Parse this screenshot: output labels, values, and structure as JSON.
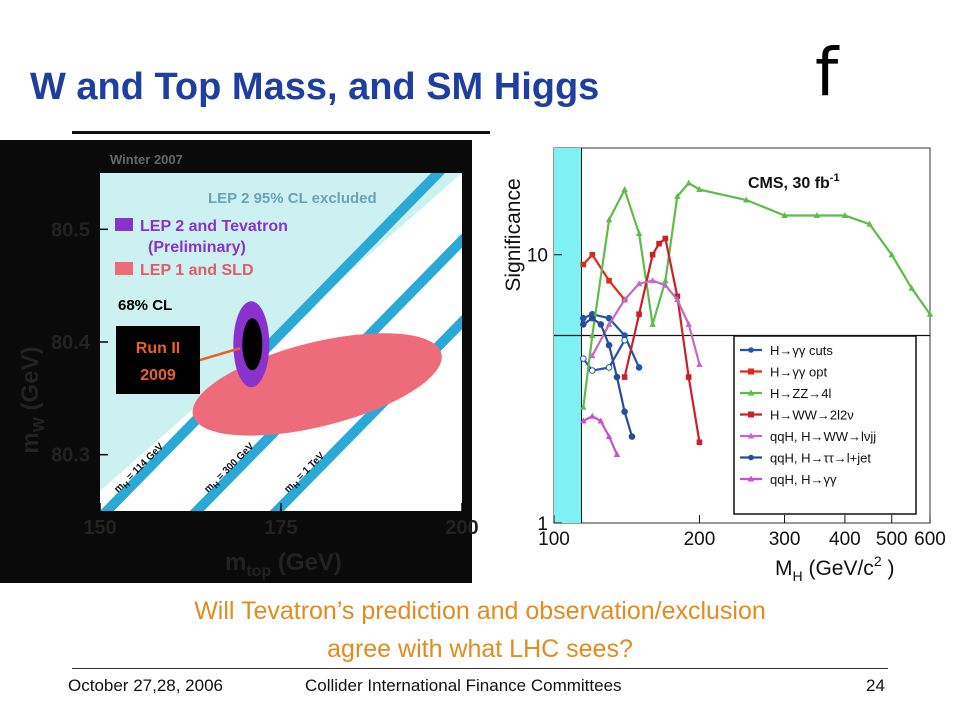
{
  "slide": {
    "title": "W and Top Mass, and SM Higgs",
    "corner_glyph": "f",
    "question_line1": "Will Tevatron’s prediction and observation/exclusion",
    "question_line2": "agree with what LHC sees?",
    "footer_left": "October 27,28, 2006",
    "footer_center": "Collider International Finance Committees",
    "footer_right": "24"
  },
  "colors": {
    "title": "#1f3fa0",
    "question": "#e08c1e",
    "lep2_excluded": "#cdf1f1",
    "band": "#2aa9d6",
    "combined": "#8a33cc",
    "lep1_sld": "#ee6b7c",
    "cms_band": "#7ff0f4"
  },
  "chart_data": [
    {
      "type": "scatter",
      "panel_tag": "Winter 2007",
      "xlabel": "m",
      "xlabel_sub": "top",
      "xlabel_unit": "(GeV)",
      "ylabel": "m",
      "ylabel_sub": "W",
      "ylabel_unit": "(GeV)",
      "xlim": [
        150,
        200
      ],
      "ylim": [
        80.25,
        80.55
      ],
      "x_ticks": [
        "150",
        "175",
        "200"
      ],
      "y_ticks": [
        "80.3",
        "80.4",
        "80.5"
      ],
      "legend": [
        {
          "label": "LEP 2 95% CL excluded",
          "color": "#cdf1f1"
        },
        {
          "label": "LEP 2 and Tevatron",
          "label2": "(Preliminary)",
          "color": "#8a33cc"
        },
        {
          "label": "LEP 1 and SLD",
          "color": "#ee6b7c"
        }
      ],
      "cl_label": "68% CL",
      "higgs_bands": [
        {
          "label": "m",
          "sub": "H",
          "value": "= 114 GeV"
        },
        {
          "label": "m",
          "sub": "H",
          "value": "= 300 GeV"
        },
        {
          "label": "m",
          "sub": "H",
          "value": "= 1 TeV"
        }
      ],
      "contours": [
        {
          "name": "LEP 2 and Tevatron",
          "center_x": 170.9,
          "center_y": 80.398
        },
        {
          "name": "LEP 1 and SLD",
          "center_x": 180,
          "center_y": 80.365
        }
      ],
      "annotation": {
        "line1": "Run II",
        "line2": "2009",
        "x": 171,
        "y": 80.398
      }
    },
    {
      "type": "line",
      "title": "CMS, 30 fb",
      "title_sup": "-1",
      "ylabel": "Significance",
      "xlabel": "M",
      "xlabel_sub": "H",
      "xlabel_unit": "(GeV/c",
      "xlabel_sup": "2",
      "xlabel_end": ")",
      "log_x": true,
      "log_y": true,
      "xlim": [
        100,
        600
      ],
      "ylim": [
        1,
        25
      ],
      "x_ticks": [
        100,
        200,
        300,
        400,
        500,
        600
      ],
      "y_ticks": [
        1,
        10
      ],
      "excluded_region": [
        100,
        114
      ],
      "threshold": 5,
      "series": [
        {
          "name": "H→γγ cuts",
          "color": "#2255aa",
          "marker": "circle",
          "x": [
            115,
            120,
            130,
            140,
            150
          ],
          "y": [
            5.8,
            6.0,
            5.8,
            5.0,
            3.8
          ]
        },
        {
          "name": "H→γγ cuts",
          "color": "#2255aa",
          "marker": "circle",
          "legend": false,
          "x": [
            115,
            120,
            130,
            140
          ],
          "y": [
            4.1,
            3.7,
            3.8,
            4.8
          ]
        },
        {
          "name": "H→γγ opt",
          "color": "#dd2a1e",
          "marker": "square",
          "x": [
            115,
            120,
            130,
            140
          ],
          "y": [
            9.2,
            10,
            8.0,
            6.8
          ]
        },
        {
          "name": "H→ZZ→4l",
          "color": "#5fbb4a",
          "marker": "triangle",
          "x": [
            115,
            120,
            130,
            140,
            150,
            160,
            170,
            180,
            190,
            200,
            250,
            300,
            350,
            400,
            450,
            500,
            550,
            600
          ],
          "y": [
            2.7,
            5.0,
            13.5,
            17.5,
            12,
            5.5,
            8,
            16.5,
            18.5,
            17.5,
            16,
            14,
            14,
            14,
            13,
            10,
            7.5,
            6
          ]
        },
        {
          "name": "H→WW→2l2ν",
          "color": "#cc1f2a",
          "marker": "square",
          "x": [
            140,
            150,
            160,
            165,
            170,
            180,
            190,
            200
          ],
          "y": [
            3.5,
            6,
            10,
            11,
            11.5,
            7,
            3.5,
            2
          ]
        },
        {
          "name": "qqH, H→WW→lνjj",
          "color": "#c06ac2",
          "marker": "triangle",
          "x": [
            120,
            130,
            140,
            150,
            160,
            170,
            180,
            190,
            200
          ],
          "y": [
            4.2,
            5.5,
            6.8,
            7.8,
            8.0,
            7.7,
            6.8,
            5.5,
            3.9
          ]
        },
        {
          "name": "qqH, H→ττ→l+jet",
          "color": "#2a4a9a",
          "marker": "circle",
          "x": [
            115,
            120,
            125,
            130,
            135,
            140,
            145
          ],
          "y": [
            5.5,
            5.8,
            5.5,
            4.6,
            3.5,
            2.6,
            2.1
          ]
        },
        {
          "name": "qqH, H→γγ",
          "color": "#c94fcc",
          "marker": "triangle",
          "x": [
            115,
            120,
            125,
            130,
            135
          ],
          "y": [
            2.4,
            2.5,
            2.4,
            2.1,
            1.8
          ]
        }
      ]
    }
  ]
}
